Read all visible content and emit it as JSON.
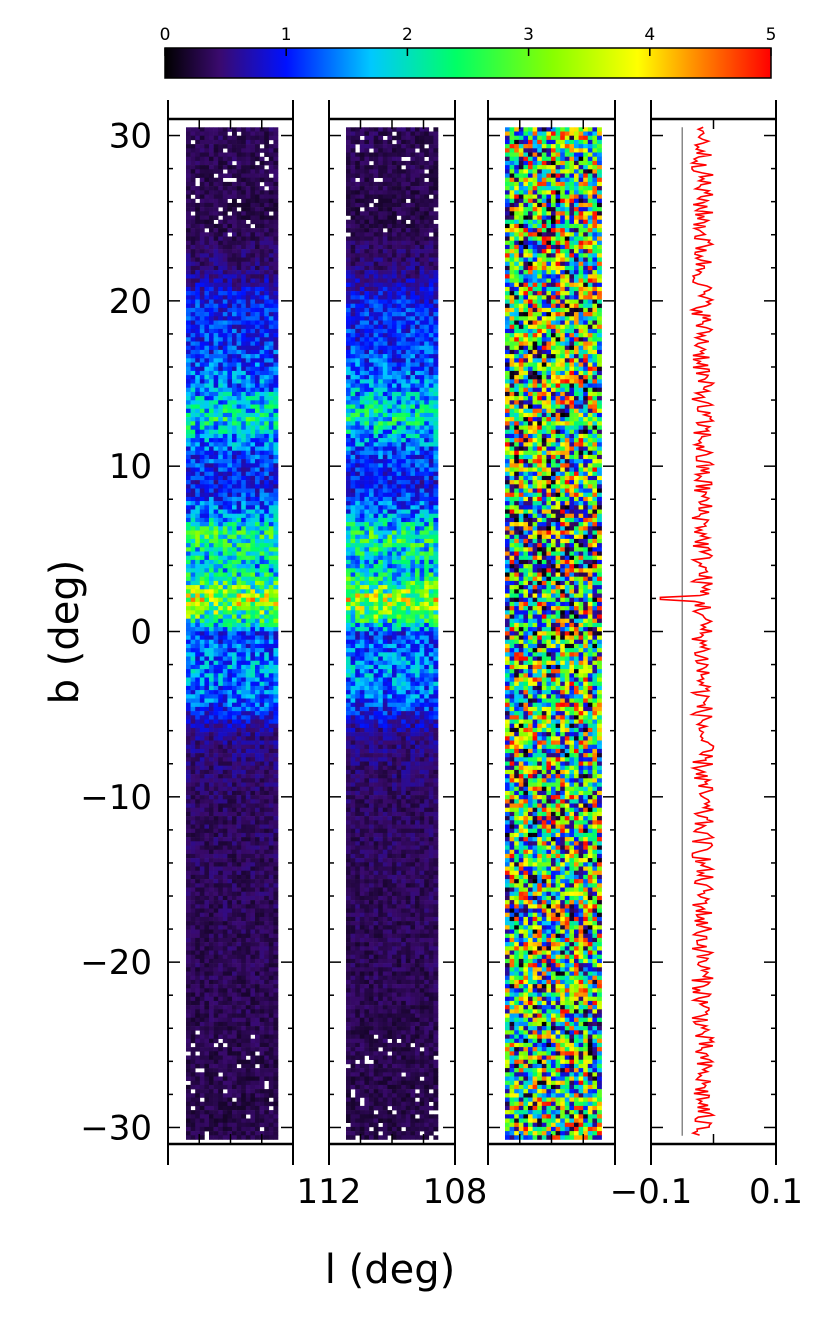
{
  "colorbar": {
    "ticks": [
      0,
      1,
      2,
      3,
      4,
      5
    ],
    "tick_labels": [
      "0",
      "1",
      "2",
      "3",
      "4",
      "5"
    ],
    "stops": [
      {
        "v": 0.0,
        "c": "#000000"
      },
      {
        "v": 0.45,
        "c": "#3a0a6e"
      },
      {
        "v": 1.0,
        "c": "#0011ff"
      },
      {
        "v": 1.7,
        "c": "#00c8ff"
      },
      {
        "v": 2.4,
        "c": "#00ff66"
      },
      {
        "v": 3.2,
        "c": "#88ff00"
      },
      {
        "v": 3.9,
        "c": "#ffff00"
      },
      {
        "v": 4.4,
        "c": "#ff8800"
      },
      {
        "v": 5.0,
        "c": "#ff0000"
      }
    ]
  },
  "axes": {
    "ylabel": "b (deg)",
    "xlabel": "l (deg)",
    "ylim": [
      -31,
      31
    ],
    "yticks": [
      30,
      20,
      10,
      0,
      -10,
      -20,
      -30
    ],
    "ytick_labels": [
      "30",
      "20",
      "10",
      "0",
      "−10",
      "−20",
      "−30"
    ],
    "xtick_labels": [
      {
        "text": "112",
        "panel": 1
      },
      {
        "text": "108",
        "panel": 2
      },
      {
        "text": "−0.1",
        "panel": 3
      },
      {
        "text": "0.1",
        "panel": 4
      }
    ]
  },
  "chart_data": [
    {
      "type": "heatmap",
      "panel": 1,
      "color_range": [
        0,
        5
      ],
      "band_profile": [
        {
          "b": 30,
          "v": 0.35
        },
        {
          "b": 25,
          "v": 0.3
        },
        {
          "b": 22,
          "v": 0.5
        },
        {
          "b": 20,
          "v": 1.0
        },
        {
          "b": 17,
          "v": 1.1
        },
        {
          "b": 15,
          "v": 1.4
        },
        {
          "b": 13,
          "v": 2.1
        },
        {
          "b": 11,
          "v": 1.2
        },
        {
          "b": 9,
          "v": 0.9
        },
        {
          "b": 7,
          "v": 1.5
        },
        {
          "b": 6,
          "v": 2.4
        },
        {
          "b": 4,
          "v": 1.8
        },
        {
          "b": 2,
          "v": 3.2
        },
        {
          "b": 1,
          "v": 2.6
        },
        {
          "b": 0,
          "v": 1.1
        },
        {
          "b": -2,
          "v": 1.5
        },
        {
          "b": -4,
          "v": 1.3
        },
        {
          "b": -6,
          "v": 0.55
        },
        {
          "b": -10,
          "v": 0.4
        },
        {
          "b": -20,
          "v": 0.35
        },
        {
          "b": -30,
          "v": 0.3
        }
      ]
    },
    {
      "type": "heatmap",
      "panel": 2,
      "color_range": [
        0,
        5
      ],
      "band_profile": [
        {
          "b": 30,
          "v": 0.35
        },
        {
          "b": 25,
          "v": 0.3
        },
        {
          "b": 22,
          "v": 0.5
        },
        {
          "b": 20,
          "v": 1.0
        },
        {
          "b": 17,
          "v": 1.1
        },
        {
          "b": 15,
          "v": 1.4
        },
        {
          "b": 13,
          "v": 2.1
        },
        {
          "b": 11,
          "v": 1.2
        },
        {
          "b": 9,
          "v": 0.9
        },
        {
          "b": 7,
          "v": 1.5
        },
        {
          "b": 6,
          "v": 2.4
        },
        {
          "b": 4,
          "v": 1.8
        },
        {
          "b": 2,
          "v": 3.2
        },
        {
          "b": 1,
          "v": 2.6
        },
        {
          "b": 0,
          "v": 1.1
        },
        {
          "b": -2,
          "v": 1.5
        },
        {
          "b": -4,
          "v": 1.3
        },
        {
          "b": -6,
          "v": 0.55
        },
        {
          "b": -10,
          "v": 0.4
        },
        {
          "b": -20,
          "v": 0.35
        },
        {
          "b": -30,
          "v": 0.3
        }
      ]
    },
    {
      "type": "heatmap",
      "panel": 3,
      "color_range": [
        0,
        5
      ],
      "noise": true
    },
    {
      "type": "line",
      "panel": 4,
      "xlim": [
        -0.1,
        0.1
      ],
      "reference_x": -0.05,
      "line_color": "#ff0000",
      "reference_color": "#888888",
      "x_scatter": [
        0.015,
        0.035
      ],
      "spike": {
        "b": 2,
        "x": -0.085
      }
    }
  ]
}
